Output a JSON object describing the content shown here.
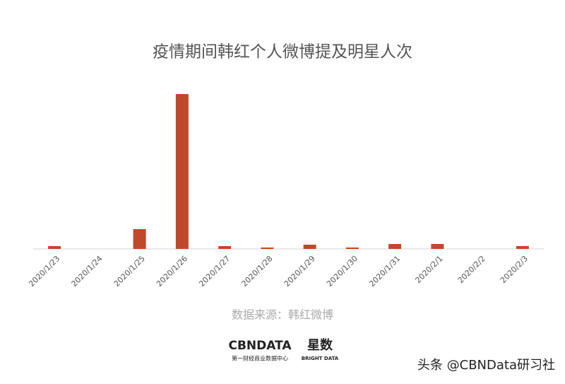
{
  "chart_data": {
    "type": "bar",
    "title": "疫情期间韩红个人微博提及明星人次",
    "categories": [
      "2020/1/23",
      "2020/1/24",
      "2020/1/25",
      "2020/1/26",
      "2020/1/27",
      "2020/1/28",
      "2020/1/29",
      "2020/1/30",
      "2020/1/31",
      "2020/2/1",
      "2020/2/2",
      "2020/2/3"
    ],
    "values": [
      4,
      0,
      28,
      219,
      4,
      2,
      6,
      2,
      7,
      7,
      0,
      4
    ],
    "color": "#c0482b",
    "ylim": [
      0,
      219
    ],
    "source": "数据来源：韩红微博",
    "logo": {
      "brand": "CBNDATA",
      "brand_sub": "第一财经商业数据中心",
      "partner": "星数",
      "partner_sub": "BRIGHT DATA"
    },
    "footer": "头条 @CBNData研习社"
  }
}
